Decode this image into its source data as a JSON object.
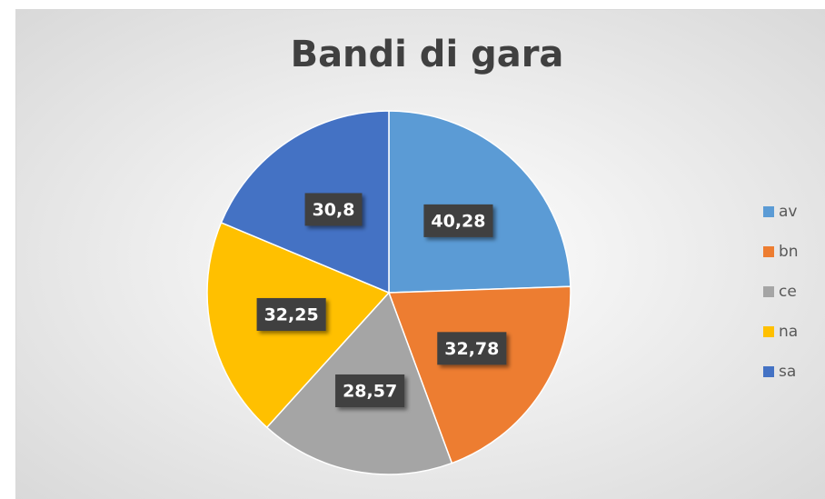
{
  "chart_data": {
    "type": "pie",
    "title": "Bandi di gara",
    "categories": [
      "av",
      "bn",
      "ce",
      "na",
      "sa"
    ],
    "values": [
      40.28,
      32.78,
      28.57,
      32.25,
      30.8
    ],
    "value_labels": [
      "40,28",
      "32,78",
      "28,57",
      "32,25",
      "30,8"
    ],
    "colors": [
      "#5b9bd5",
      "#ed7d31",
      "#a5a5a5",
      "#ffc000",
      "#4472c4"
    ],
    "legend": "right"
  }
}
